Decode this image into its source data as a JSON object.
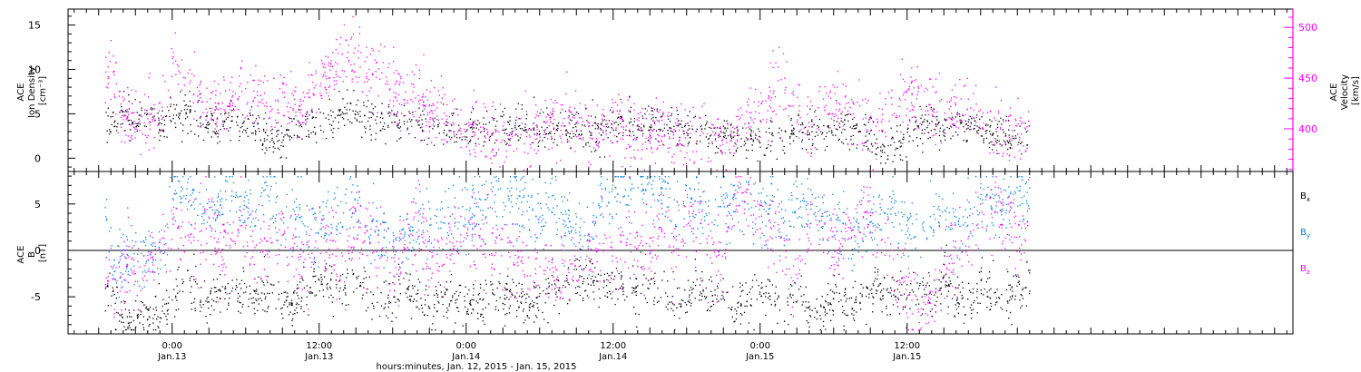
{
  "colors": {
    "density": "#000000",
    "velocity": "#ff00ff",
    "bx": "#000000",
    "by": "#0080e0",
    "bz": "#ff00ff",
    "axis": "#000000",
    "velocity_axis": "#ff00ff"
  },
  "chart_data": [
    {
      "type": "scatter",
      "panel": "top",
      "ylabel_lines": [
        "ACE",
        "Ion Density",
        "[cm⁻³]"
      ],
      "ylim": [
        -1.5,
        16.8
      ],
      "yticks": [
        0,
        5,
        10,
        15
      ],
      "right_axis": {
        "ylabel_lines": [
          "ACE",
          "Velocity",
          "[km/s]"
        ],
        "ylim": [
          358,
          518
        ],
        "yticks": [
          400,
          450,
          500
        ]
      },
      "series": [
        {
          "key": "density",
          "axis": "left",
          "x": [
            -5.5,
            -5,
            -4.5,
            -4,
            -3.5,
            -3,
            -2,
            -1,
            0,
            1,
            2,
            3,
            4,
            5,
            6,
            7,
            8,
            9,
            10,
            11,
            12,
            13,
            14,
            15,
            16,
            17,
            18,
            19,
            20,
            21,
            22,
            23,
            24,
            25,
            26,
            27,
            28,
            29,
            30,
            31,
            32,
            33,
            34,
            35,
            36,
            37,
            38,
            39,
            40,
            41,
            42,
            43,
            44,
            45,
            46,
            47,
            48,
            49,
            50,
            51,
            52,
            53,
            54,
            55,
            56,
            57,
            58,
            59,
            60,
            61,
            62,
            63,
            64,
            65,
            66,
            67,
            68,
            69,
            70
          ],
          "y": [
            4.2,
            4.0,
            4.5,
            6.0,
            4.5,
            4.5,
            4.5,
            4.0,
            4.5,
            5.0,
            5.5,
            3.5,
            4.0,
            4.5,
            3.5,
            3.0,
            2.5,
            2.0,
            3.5,
            4.0,
            4.0,
            4.0,
            5.0,
            5.0,
            4.5,
            4.5,
            4.5,
            4.0,
            4.5,
            2.5,
            3.5,
            3.0,
            3.0,
            3.5,
            3.0,
            3.5,
            3.5,
            3.5,
            3.5,
            3.5,
            3.0,
            3.5,
            3.0,
            3.5,
            4.0,
            4.0,
            4.0,
            4.0,
            3.5,
            3.5,
            3.0,
            3.0,
            2.5,
            3.0,
            2.5,
            2.0,
            2.0,
            2.0,
            2.5,
            3.0,
            3.0,
            3.0,
            3.5,
            3.5,
            3.0,
            2.5,
            1.5,
            2.0,
            2.5,
            3.5,
            4.0,
            3.5,
            4.0,
            4.0,
            3.5,
            2.5,
            2.0,
            2.5,
            3.0
          ],
          "spread": 1.6
        },
        {
          "key": "velocity",
          "axis": "right",
          "x": [
            -5.5,
            -5,
            -4.5,
            -4,
            -3.5,
            -3,
            -2,
            -1,
            0,
            1,
            2,
            3,
            4,
            5,
            6,
            7,
            8,
            9,
            10,
            11,
            12,
            13,
            14,
            15,
            16,
            17,
            18,
            19,
            20,
            21,
            22,
            23,
            24,
            25,
            26,
            27,
            28,
            29,
            30,
            31,
            32,
            33,
            34,
            35,
            36,
            37,
            38,
            39,
            40,
            41,
            42,
            43,
            44,
            45,
            46,
            47,
            48,
            49,
            50,
            51,
            52,
            53,
            54,
            55,
            56,
            57,
            58,
            59,
            60,
            61,
            62,
            63,
            64,
            65,
            66,
            67,
            68,
            69,
            70
          ],
          "y": [
            440,
            470,
            430,
            410,
            412,
            408,
            405,
            410,
            460,
            445,
            430,
            420,
            425,
            430,
            440,
            425,
            420,
            430,
            418,
            430,
            450,
            460,
            465,
            468,
            460,
            455,
            440,
            430,
            425,
            418,
            420,
            410,
            405,
            395,
            400,
            390,
            392,
            395,
            400,
            405,
            410,
            400,
            398,
            392,
            405,
            400,
            395,
            392,
            400,
            395,
            390,
            392,
            395,
            388,
            395,
            410,
            420,
            430,
            440,
            420,
            410,
            420,
            430,
            425,
            410,
            400,
            410,
            420,
            430,
            440,
            420,
            410,
            420,
            430,
            410,
            400,
            395,
            400,
            395
          ],
          "spread": 24
        }
      ]
    },
    {
      "type": "scatter",
      "panel": "bottom",
      "ylabel_lines": [
        "ACE",
        "B",
        "[nT]"
      ],
      "ylim": [
        -9.0,
        8.5
      ],
      "yticks": [
        -5,
        0,
        5
      ],
      "zero_line": true,
      "series": [
        {
          "key": "bx",
          "legend": "Bx",
          "x": [
            -5.5,
            -5,
            -4.5,
            -4,
            -3,
            -2,
            -1,
            0,
            1,
            2,
            3,
            4,
            5,
            6,
            7,
            8,
            9,
            10,
            11,
            12,
            13,
            14,
            15,
            16,
            17,
            18,
            19,
            20,
            21,
            22,
            23,
            24,
            25,
            26,
            27,
            28,
            29,
            30,
            31,
            32,
            33,
            34,
            35,
            36,
            37,
            38,
            39,
            40,
            41,
            42,
            43,
            44,
            45,
            46,
            47,
            48,
            49,
            50,
            51,
            52,
            53,
            54,
            55,
            56,
            57,
            58,
            59,
            60,
            61,
            62,
            63,
            64,
            65,
            66,
            67,
            68,
            69,
            70
          ],
          "y": [
            -5.5,
            -4.0,
            -6.0,
            -7.0,
            -7.3,
            -7.0,
            -6.5,
            -5.0,
            -3.0,
            -4.5,
            -5.5,
            -5.0,
            -4.0,
            -4.5,
            -5.0,
            -4.0,
            -5.5,
            -6.0,
            -4.0,
            -3.0,
            -4.5,
            -3.5,
            -3.0,
            -5.0,
            -6.0,
            -4.5,
            -4.0,
            -5.5,
            -6.5,
            -5.0,
            -4.5,
            -5.0,
            -6.0,
            -4.5,
            -5.0,
            -4.5,
            -5.5,
            -5.0,
            -4.5,
            -4.0,
            -3.0,
            -2.5,
            -3.5,
            -3.5,
            -4.5,
            -4.0,
            -3.0,
            -4.5,
            -5.5,
            -5.0,
            -4.0,
            -5.0,
            -4.5,
            -6.0,
            -5.5,
            -4.0,
            -5.0,
            -6.5,
            -5.0,
            -6.5,
            -6.5,
            -4.5,
            -6.0,
            -5.5,
            -4.5,
            -4.0,
            -5.0,
            -4.5,
            -4.0,
            -5.0,
            -3.0,
            -5.0,
            -6.0,
            -3.5,
            -4.5,
            -5.5,
            -4.0,
            -3.5
          ],
          "spread": 1.8
        },
        {
          "key": "by",
          "legend": "By",
          "x": [
            -5.5,
            -5,
            -4.5,
            -4,
            -3,
            -2,
            -1,
            0,
            1,
            2,
            3,
            4,
            5,
            6,
            7,
            8,
            9,
            10,
            11,
            12,
            13,
            14,
            15,
            16,
            17,
            18,
            19,
            20,
            21,
            22,
            23,
            24,
            25,
            26,
            27,
            28,
            29,
            30,
            31,
            32,
            33,
            34,
            35,
            36,
            37,
            38,
            39,
            40,
            41,
            42,
            43,
            44,
            45,
            46,
            47,
            48,
            49,
            50,
            51,
            52,
            53,
            54,
            55,
            56,
            57,
            58,
            59,
            60,
            61,
            62,
            63,
            64,
            65,
            66,
            67,
            68,
            69,
            70
          ],
          "y": [
            4.0,
            0.0,
            -1.5,
            -1.0,
            -1.0,
            -0.5,
            0.0,
            6.0,
            6.5,
            5.0,
            4.0,
            5.0,
            6.0,
            4.0,
            5.5,
            5.0,
            3.5,
            4.5,
            2.5,
            3.0,
            4.0,
            4.0,
            4.5,
            3.0,
            2.0,
            1.0,
            2.0,
            3.0,
            2.5,
            4.0,
            3.0,
            4.0,
            4.5,
            5.5,
            6.0,
            5.5,
            5.0,
            4.0,
            5.0,
            3.0,
            2.0,
            1.0,
            6.0,
            6.5,
            6.0,
            6.5,
            7.0,
            6.5,
            5.5,
            5.0,
            4.5,
            5.0,
            6.0,
            5.0,
            5.5,
            4.0,
            5.0,
            3.5,
            4.5,
            5.0,
            3.5,
            3.0,
            2.5,
            2.0,
            3.0,
            4.0,
            5.0,
            2.0,
            3.0,
            3.5,
            4.0,
            3.0,
            4.0,
            5.0,
            4.5,
            5.0,
            5.5,
            6.0
          ],
          "spread": 2.6
        },
        {
          "key": "bz",
          "legend": "Bz",
          "x": [
            -5.5,
            -5,
            -4.5,
            -4,
            -3,
            -2,
            -1,
            0,
            1,
            2,
            3,
            4,
            5,
            6,
            7,
            8,
            9,
            10,
            11,
            12,
            13,
            14,
            15,
            16,
            17,
            18,
            19,
            20,
            21,
            22,
            23,
            24,
            25,
            26,
            27,
            28,
            29,
            30,
            31,
            32,
            33,
            34,
            35,
            36,
            37,
            38,
            39,
            40,
            41,
            42,
            43,
            44,
            45,
            46,
            47,
            48,
            49,
            50,
            51,
            52,
            53,
            54,
            55,
            56,
            57,
            58,
            59,
            60,
            61,
            62,
            63,
            64,
            65,
            66,
            67,
            68,
            69,
            70
          ],
          "y": [
            -2.0,
            -3.0,
            -3.5,
            -1.5,
            -2.0,
            -1.5,
            -0.5,
            2.0,
            0.0,
            1.5,
            3.0,
            0.0,
            2.0,
            3.0,
            -1.0,
            1.0,
            2.0,
            0.0,
            -1.0,
            2.0,
            1.0,
            -2.0,
            3.0,
            1.0,
            0.0,
            -2.0,
            1.0,
            2.0,
            0.0,
            -1.0,
            2.0,
            3.0,
            1.0,
            0.0,
            2.0,
            -1.0,
            -2.0,
            0.0,
            -4.0,
            -2.0,
            -3.0,
            0.0,
            1.0,
            -1.0,
            2.0,
            1.0,
            0.0,
            3.0,
            1.0,
            4.0,
            2.0,
            0.0,
            -1.0,
            6.0,
            5.0,
            4.0,
            2.0,
            0.0,
            -4.0,
            3.0,
            4.0,
            1.0,
            2.0,
            3.0,
            4.0,
            1.0,
            -3.0,
            -5.0,
            -7.0,
            -4.0,
            -2.0,
            0.0,
            2.0,
            4.0,
            5.0,
            3.0,
            1.0,
            3.0
          ],
          "spread": 3.2
        }
      ]
    }
  ],
  "x_axis": {
    "xlim": [
      -8.5,
      91.5
    ],
    "tick_positions": [
      0,
      12,
      24,
      36,
      48,
      60
    ],
    "tick_labels_time": [
      "0:00",
      "12:00",
      "0:00",
      "12:00",
      "0:00",
      "12:00"
    ],
    "tick_labels_date": [
      "Jan.13",
      "Jan.13",
      "Jan.14",
      "Jan.14",
      "Jan.15",
      "Jan.15"
    ],
    "minor_step": 1,
    "mid_step": 3,
    "title": "hours:minutes, Jan. 12, 2015 - Jan. 15, 2015"
  }
}
